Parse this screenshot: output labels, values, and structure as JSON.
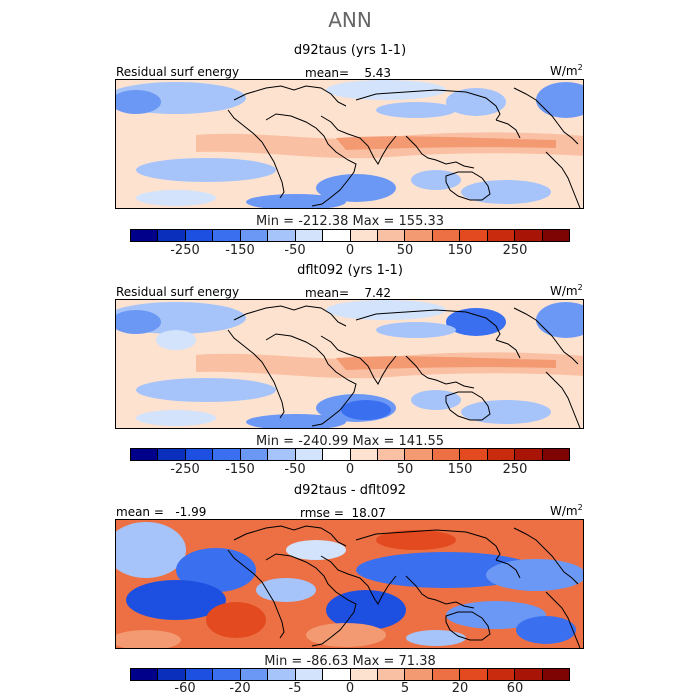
{
  "figure": {
    "title": "ANN",
    "panels": [
      {
        "title": "d92taus (yrs 1-1)",
        "left_label": "Residual surf energy",
        "center_label": "mean=    5.43",
        "units": "W/m",
        "units_exp": "2",
        "minmax": "Min = -212.38  Max = 155.33",
        "colorbar": "full",
        "tick_labels": [
          "-250",
          "-150",
          "-50",
          "0",
          "50",
          "150",
          "250"
        ]
      },
      {
        "title": "dflt092 (yrs 1-1)",
        "left_label": "Residual surf energy",
        "center_label": "mean=    7.42",
        "units": "W/m",
        "units_exp": "2",
        "minmax": "Min = -240.99  Max = 141.55",
        "colorbar": "full",
        "tick_labels": [
          "-250",
          "-150",
          "-50",
          "0",
          "50",
          "150",
          "250"
        ]
      },
      {
        "title": "d92taus - dflt092",
        "left_label": "mean =   -1.99",
        "center_label": "rmse =  18.07",
        "units": "W/m",
        "units_exp": "2",
        "minmax": "Min = -86.63  Max =  71.38",
        "colorbar": "diff",
        "tick_labels": [
          "-60",
          "-20",
          "-5",
          "0",
          "5",
          "20",
          "60"
        ]
      }
    ]
  },
  "colors": {
    "scale": [
      "#00008b",
      "#0a2fbd",
      "#1d4fe0",
      "#3a6ff0",
      "#6c98f5",
      "#a6c4f9",
      "#d2e3fb",
      "#ffffff",
      "#fde2d0",
      "#f9c0a3",
      "#f39a72",
      "#ec7044",
      "#e34a1f",
      "#c92b0e",
      "#a81406",
      "#7e0303"
    ],
    "land_outline": "#000000"
  }
}
